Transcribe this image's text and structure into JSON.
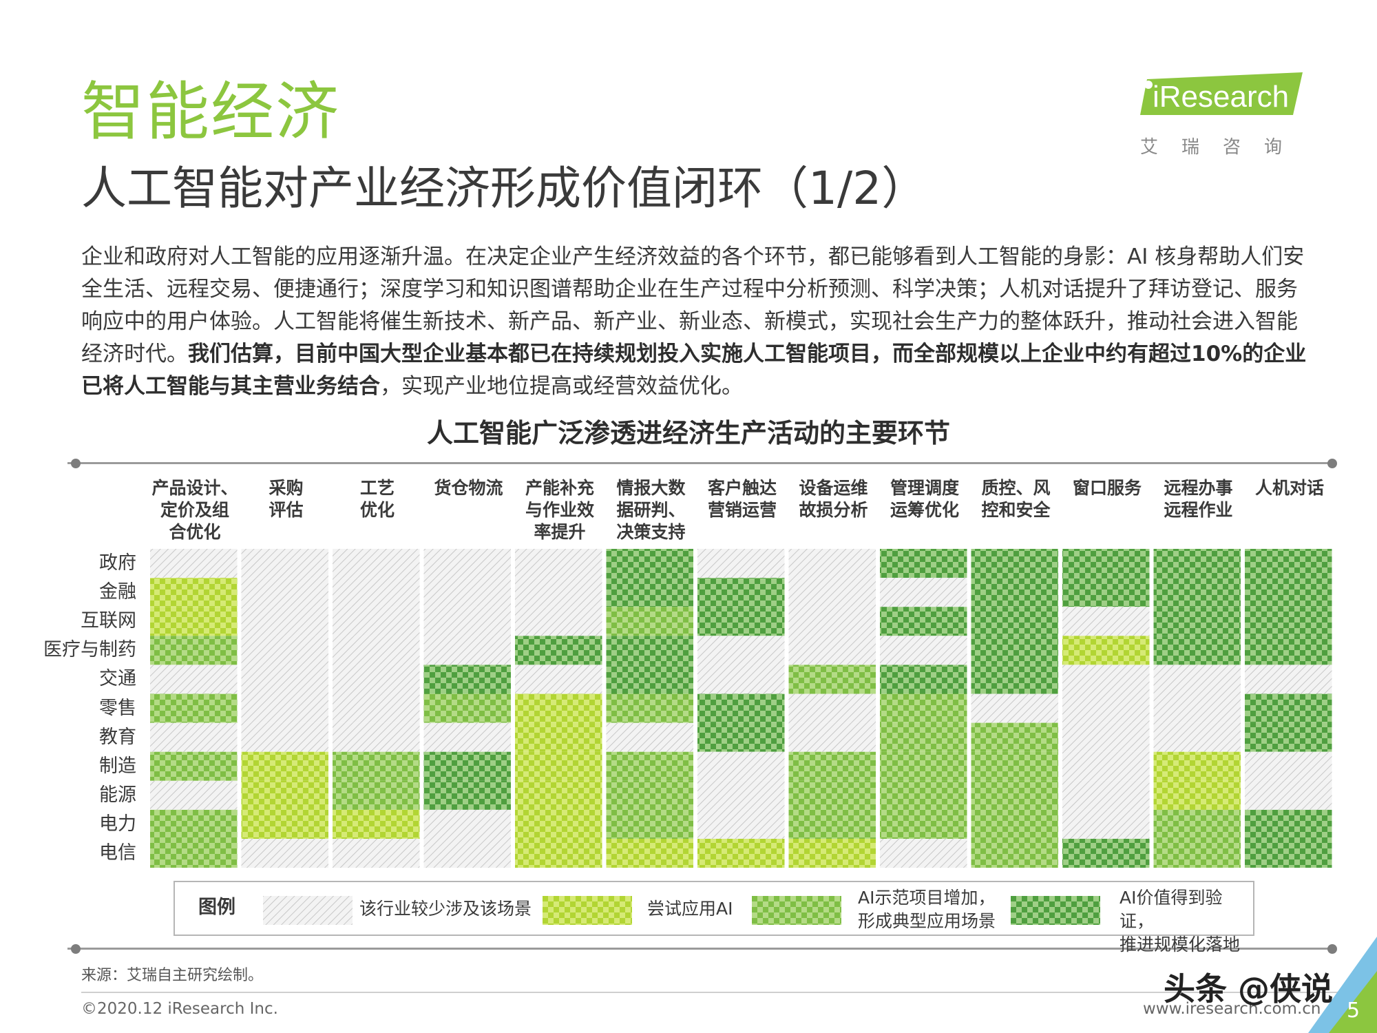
{
  "section_title": "智能经济",
  "slide_title": "人工智能对产业经济形成价值闭环（1/2）",
  "logo": {
    "brand": "iResearch",
    "cn": "艾瑞咨询"
  },
  "intro": {
    "normal_1": "企业和政府对人工智能的应用逐渐升温。在决定企业产生经济效益的各个环节，都已能够看到人工智能的身影：AI 核身帮助人们安全生活、远程交易、便捷通行；深度学习和知识图谱帮助企业在生产过程中分析预测、科学决策；人机对话提升了拜访登记、服务响应中的用户体验。人工智能将催生新技术、新产品、新产业、新业态、新模式，实现社会生产力的整体跃升，推动社会进入智能经济时代。",
    "bold": "我们估算，目前中国大型企业基本都已在持续规划投入实施人工智能项目，而全部规模以上企业中约有超过10%的企业已将人工智能与其主营业务结合",
    "normal_2": "，实现产业地位提高或经营效益优化。"
  },
  "chart_data": {
    "type": "heatmap",
    "title": "人工智能广泛渗透进经济生产活动的主要环节",
    "columns": [
      "产品设计、定价及组合优化",
      "采购评估",
      "工艺优化",
      "货仓物流",
      "产能补充与作业效率提升",
      "情报大数据研判、决策支持",
      "客户触达营销运营",
      "设备运维故损分析",
      "管理调度运筹优化",
      "质控、风控和安全",
      "窗口服务",
      "远程办事远程作业",
      "人机对话"
    ],
    "rows": [
      "政府",
      "金融",
      "互联网",
      "医疗与制药",
      "交通",
      "零售",
      "教育",
      "制造",
      "能源",
      "电力",
      "电信"
    ],
    "levels": [
      {
        "value": 0,
        "label": "该行业较少涉及该场景",
        "color": "#c9c9c9"
      },
      {
        "value": 1,
        "label": "尝试应用AI",
        "color": "#c3e03c"
      },
      {
        "value": 2,
        "label": "AI示范项目增加，形成典型应用场景",
        "color": "#8ec63f"
      },
      {
        "value": 3,
        "label": "AI价值得到验证，推进规模化落地",
        "color": "#5aac46"
      }
    ],
    "matrix": [
      [
        0,
        0,
        0,
        0,
        0,
        3,
        0,
        0,
        3,
        3,
        3,
        3,
        3
      ],
      [
        1,
        0,
        0,
        0,
        0,
        3,
        3,
        0,
        0,
        3,
        3,
        3,
        3
      ],
      [
        1,
        0,
        0,
        0,
        0,
        2,
        3,
        0,
        3,
        3,
        0,
        3,
        3
      ],
      [
        2,
        0,
        0,
        0,
        3,
        3,
        0,
        0,
        0,
        3,
        1,
        3,
        3
      ],
      [
        0,
        0,
        0,
        3,
        0,
        3,
        0,
        2,
        3,
        3,
        0,
        0,
        0
      ],
      [
        2,
        0,
        0,
        2,
        1,
        2,
        3,
        0,
        2,
        0,
        0,
        0,
        3
      ],
      [
        0,
        0,
        0,
        0,
        1,
        0,
        3,
        0,
        2,
        2,
        0,
        0,
        3
      ],
      [
        2,
        1,
        2,
        3,
        1,
        2,
        0,
        2,
        2,
        2,
        0,
        1,
        0
      ],
      [
        0,
        1,
        2,
        3,
        1,
        2,
        0,
        2,
        2,
        2,
        0,
        1,
        0
      ],
      [
        2,
        1,
        1,
        0,
        1,
        2,
        0,
        2,
        2,
        2,
        0,
        2,
        3
      ],
      [
        2,
        0,
        0,
        0,
        1,
        1,
        1,
        1,
        0,
        2,
        3,
        2,
        3
      ]
    ],
    "legend_title": "图例",
    "legend_lines": [
      [
        "该行业较少涉及该场景"
      ],
      [
        "尝试应用AI"
      ],
      [
        "AI示范项目增加，",
        "形成典型应用场景"
      ],
      [
        "AI价值得到验证，",
        "推进规模化落地"
      ]
    ]
  },
  "col_labels": [
    [
      "产品设计、",
      "定价及组",
      "合优化"
    ],
    [
      "采购",
      "评估"
    ],
    [
      "工艺",
      "优化"
    ],
    [
      "货仓物流"
    ],
    [
      "产能补充",
      "与作业效",
      "率提升"
    ],
    [
      "情报大数",
      "据研判、",
      "决策支持"
    ],
    [
      "客户触达",
      "营销运营"
    ],
    [
      "设备运维",
      "故损分析"
    ],
    [
      "管理调度",
      "运筹优化"
    ],
    [
      "质控、风",
      "控和安全"
    ],
    [
      "窗口服务"
    ],
    [
      "远程办事",
      "远程作业"
    ],
    [
      "人机对话"
    ]
  ],
  "source": "来源：艾瑞自主研究绘制。",
  "copyright": "©2020.12 iResearch Inc.",
  "website": "www.iresearch.com.cn",
  "page_number": "5",
  "watermark": "头条 @侠说"
}
